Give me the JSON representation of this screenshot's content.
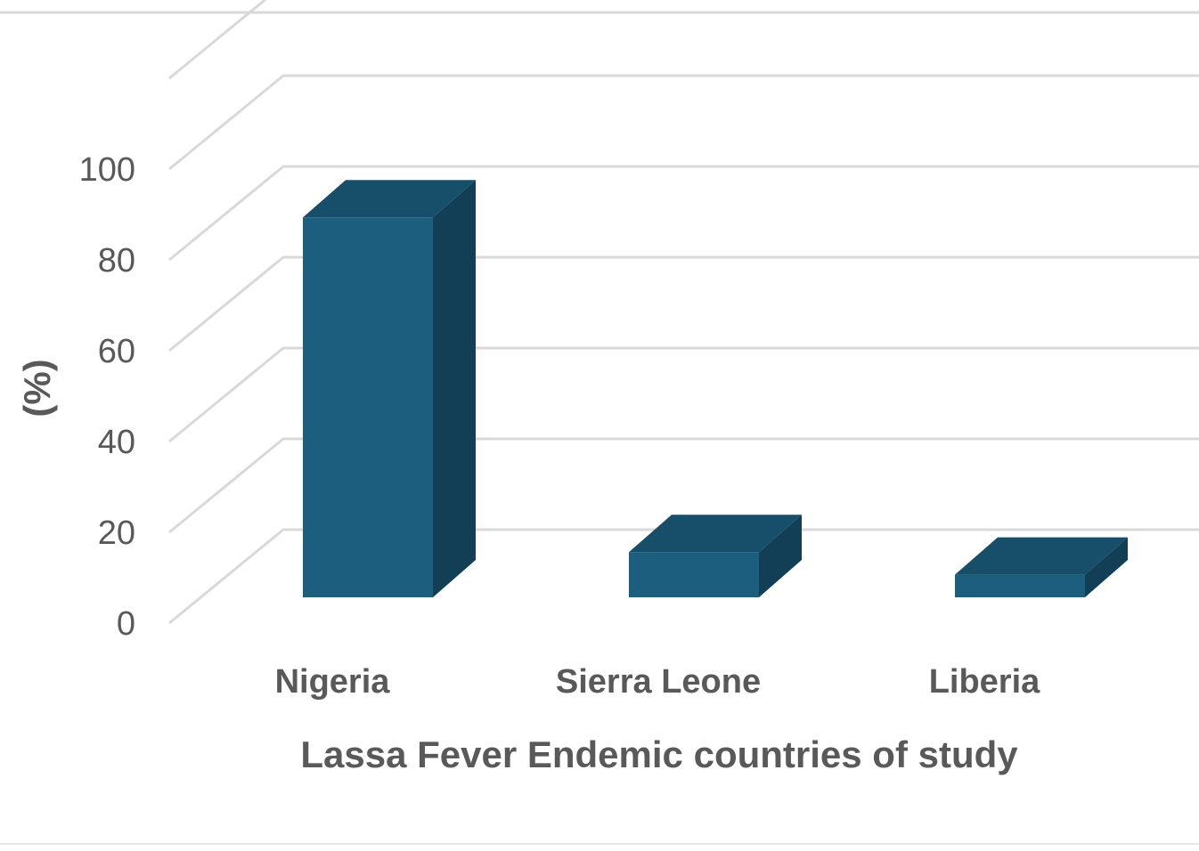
{
  "chart_data": {
    "type": "bar",
    "style": "3d-column",
    "categories": [
      "Nigeria",
      "Sierra Leone",
      "Liberia"
    ],
    "values": [
      84,
      10,
      5
    ],
    "title": "",
    "xlabel": "Lassa Fever Endemic countries of study",
    "ylabel": "(%)",
    "ylim": [
      0,
      100
    ],
    "yticks": [
      "0",
      "20",
      "40",
      "60",
      "80",
      "100"
    ],
    "grid": true,
    "legend": "none",
    "colors": {
      "bar_front": "#1b5e7e",
      "bar_top": "#174f6a",
      "bar_side": "#123f55",
      "gridline": "#d9d9d9",
      "text": "#595959"
    }
  }
}
